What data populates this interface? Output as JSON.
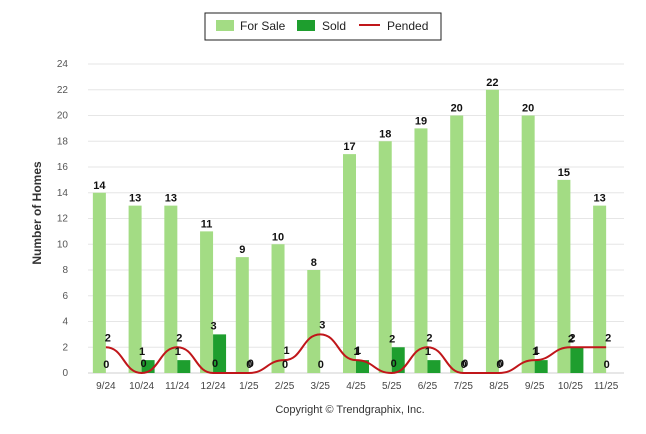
{
  "chart_data": {
    "type": "bar",
    "title": "",
    "xlabel": "",
    "ylabel": "Number of Homes",
    "ylim": [
      0,
      24
    ],
    "yticks": [
      0,
      2,
      4,
      6,
      8,
      10,
      12,
      14,
      16,
      18,
      20,
      22,
      24
    ],
    "grid": true,
    "legend_position": "top-center",
    "categories": [
      "9/24",
      "10/24",
      "11/24",
      "12/24",
      "1/25",
      "2/25",
      "3/25",
      "4/25",
      "5/25",
      "6/25",
      "7/25",
      "8/25",
      "9/25",
      "10/25",
      "11/25"
    ],
    "series": [
      {
        "name": "For Sale",
        "kind": "bar",
        "color": "#a3dc84",
        "values": [
          14,
          13,
          13,
          11,
          9,
          10,
          8,
          17,
          18,
          19,
          20,
          22,
          20,
          15,
          13
        ]
      },
      {
        "name": "Sold",
        "kind": "bar",
        "color": "#1e9e2e",
        "values": [
          0,
          1,
          1,
          3,
          0,
          0,
          0,
          1,
          2,
          1,
          0,
          0,
          1,
          2,
          0
        ]
      },
      {
        "name": "Pended",
        "kind": "line",
        "color": "#c0161a",
        "values": [
          2,
          0,
          2,
          0,
          0,
          1,
          3,
          1,
          0,
          2,
          0,
          0,
          1,
          2,
          2
        ]
      }
    ],
    "footer": "Copyright © Trendgraphix, Inc."
  }
}
